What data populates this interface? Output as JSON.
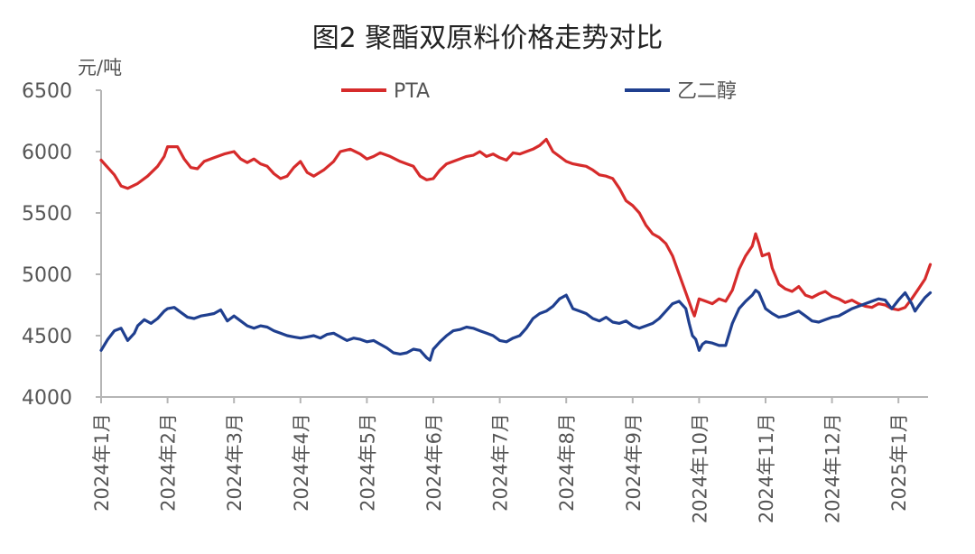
{
  "chart_data": {
    "type": "line",
    "title": "图2 聚酯双原料价格走势对比",
    "ylabel": "元/吨",
    "ylim": [
      4000,
      6500
    ],
    "yticks": [
      4000,
      4500,
      5000,
      5500,
      6000,
      6500
    ],
    "x_ticks": [
      "2024年1月",
      "2024年2月",
      "2024年3月",
      "2024年4月",
      "2024年5月",
      "2024年6月",
      "2024年7月",
      "2024年8月",
      "2024年9月",
      "2024年10月",
      "2024年11月",
      "2024年12月",
      "2025年1月"
    ],
    "x_range": [
      0,
      12.48
    ],
    "grid": false,
    "legend_position": "top",
    "series": [
      {
        "name": "PTA",
        "color": "#d62b2b",
        "points": [
          [
            0.0,
            5930
          ],
          [
            0.1,
            5870
          ],
          [
            0.2,
            5810
          ],
          [
            0.3,
            5720
          ],
          [
            0.4,
            5700
          ],
          [
            0.55,
            5740
          ],
          [
            0.7,
            5800
          ],
          [
            0.85,
            5880
          ],
          [
            0.95,
            5960
          ],
          [
            1.0,
            6040
          ],
          [
            1.15,
            6040
          ],
          [
            1.25,
            5940
          ],
          [
            1.35,
            5870
          ],
          [
            1.45,
            5860
          ],
          [
            1.55,
            5920
          ],
          [
            1.7,
            5950
          ],
          [
            1.85,
            5980
          ],
          [
            2.0,
            6000
          ],
          [
            2.1,
            5940
          ],
          [
            2.2,
            5910
          ],
          [
            2.3,
            5940
          ],
          [
            2.4,
            5900
          ],
          [
            2.5,
            5880
          ],
          [
            2.6,
            5820
          ],
          [
            2.7,
            5780
          ],
          [
            2.8,
            5800
          ],
          [
            2.9,
            5870
          ],
          [
            3.0,
            5920
          ],
          [
            3.1,
            5830
          ],
          [
            3.2,
            5800
          ],
          [
            3.35,
            5850
          ],
          [
            3.5,
            5920
          ],
          [
            3.6,
            6000
          ],
          [
            3.75,
            6020
          ],
          [
            3.9,
            5980
          ],
          [
            4.0,
            5940
          ],
          [
            4.1,
            5960
          ],
          [
            4.2,
            5990
          ],
          [
            4.35,
            5960
          ],
          [
            4.5,
            5920
          ],
          [
            4.6,
            5900
          ],
          [
            4.7,
            5880
          ],
          [
            4.8,
            5800
          ],
          [
            4.9,
            5770
          ],
          [
            5.0,
            5780
          ],
          [
            5.1,
            5850
          ],
          [
            5.2,
            5900
          ],
          [
            5.35,
            5930
          ],
          [
            5.5,
            5960
          ],
          [
            5.6,
            5970
          ],
          [
            5.7,
            6000
          ],
          [
            5.8,
            5960
          ],
          [
            5.9,
            5980
          ],
          [
            6.0,
            5950
          ],
          [
            6.1,
            5930
          ],
          [
            6.2,
            5990
          ],
          [
            6.3,
            5980
          ],
          [
            6.4,
            6000
          ],
          [
            6.5,
            6020
          ],
          [
            6.6,
            6050
          ],
          [
            6.7,
            6100
          ],
          [
            6.8,
            6000
          ],
          [
            6.9,
            5960
          ],
          [
            7.0,
            5920
          ],
          [
            7.1,
            5900
          ],
          [
            7.2,
            5890
          ],
          [
            7.3,
            5880
          ],
          [
            7.4,
            5850
          ],
          [
            7.5,
            5810
          ],
          [
            7.6,
            5800
          ],
          [
            7.7,
            5780
          ],
          [
            7.8,
            5700
          ],
          [
            7.9,
            5600
          ],
          [
            8.0,
            5560
          ],
          [
            8.1,
            5500
          ],
          [
            8.2,
            5400
          ],
          [
            8.3,
            5330
          ],
          [
            8.4,
            5300
          ],
          [
            8.5,
            5250
          ],
          [
            8.6,
            5150
          ],
          [
            8.7,
            5000
          ],
          [
            8.8,
            4850
          ],
          [
            8.9,
            4700
          ],
          [
            8.93,
            4660
          ],
          [
            9.0,
            4800
          ],
          [
            9.1,
            4780
          ],
          [
            9.2,
            4760
          ],
          [
            9.3,
            4800
          ],
          [
            9.4,
            4780
          ],
          [
            9.5,
            4870
          ],
          [
            9.6,
            5040
          ],
          [
            9.7,
            5150
          ],
          [
            9.8,
            5230
          ],
          [
            9.85,
            5330
          ],
          [
            9.9,
            5250
          ],
          [
            9.95,
            5150
          ],
          [
            10.05,
            5170
          ],
          [
            10.1,
            5050
          ],
          [
            10.2,
            4920
          ],
          [
            10.3,
            4880
          ],
          [
            10.4,
            4860
          ],
          [
            10.5,
            4900
          ],
          [
            10.6,
            4830
          ],
          [
            10.7,
            4810
          ],
          [
            10.8,
            4840
          ],
          [
            10.9,
            4860
          ],
          [
            11.0,
            4820
          ],
          [
            11.1,
            4800
          ],
          [
            11.2,
            4770
          ],
          [
            11.3,
            4790
          ],
          [
            11.4,
            4760
          ],
          [
            11.5,
            4740
          ],
          [
            11.6,
            4730
          ],
          [
            11.7,
            4760
          ],
          [
            11.8,
            4750
          ],
          [
            11.9,
            4720
          ],
          [
            12.0,
            4710
          ],
          [
            12.1,
            4730
          ],
          [
            12.2,
            4800
          ],
          [
            12.3,
            4880
          ],
          [
            12.4,
            4960
          ],
          [
            12.48,
            5080
          ]
        ]
      },
      {
        "name": "乙二醇",
        "color": "#1f3f8f",
        "points": [
          [
            0.0,
            4380
          ],
          [
            0.1,
            4470
          ],
          [
            0.2,
            4540
          ],
          [
            0.3,
            4560
          ],
          [
            0.4,
            4460
          ],
          [
            0.5,
            4520
          ],
          [
            0.55,
            4580
          ],
          [
            0.65,
            4630
          ],
          [
            0.75,
            4600
          ],
          [
            0.85,
            4640
          ],
          [
            0.95,
            4700
          ],
          [
            1.0,
            4720
          ],
          [
            1.1,
            4730
          ],
          [
            1.2,
            4690
          ],
          [
            1.3,
            4650
          ],
          [
            1.4,
            4640
          ],
          [
            1.5,
            4660
          ],
          [
            1.6,
            4670
          ],
          [
            1.7,
            4680
          ],
          [
            1.8,
            4710
          ],
          [
            1.9,
            4620
          ],
          [
            2.0,
            4660
          ],
          [
            2.1,
            4620
          ],
          [
            2.2,
            4580
          ],
          [
            2.3,
            4560
          ],
          [
            2.4,
            4580
          ],
          [
            2.5,
            4570
          ],
          [
            2.6,
            4540
          ],
          [
            2.7,
            4520
          ],
          [
            2.8,
            4500
          ],
          [
            2.9,
            4490
          ],
          [
            3.0,
            4480
          ],
          [
            3.1,
            4490
          ],
          [
            3.2,
            4500
          ],
          [
            3.3,
            4480
          ],
          [
            3.4,
            4510
          ],
          [
            3.5,
            4520
          ],
          [
            3.6,
            4490
          ],
          [
            3.7,
            4460
          ],
          [
            3.8,
            4480
          ],
          [
            3.9,
            4470
          ],
          [
            4.0,
            4450
          ],
          [
            4.1,
            4460
          ],
          [
            4.2,
            4430
          ],
          [
            4.3,
            4400
          ],
          [
            4.4,
            4360
          ],
          [
            4.5,
            4350
          ],
          [
            4.6,
            4360
          ],
          [
            4.7,
            4390
          ],
          [
            4.8,
            4380
          ],
          [
            4.9,
            4320
          ],
          [
            4.95,
            4300
          ],
          [
            5.0,
            4390
          ],
          [
            5.1,
            4450
          ],
          [
            5.2,
            4500
          ],
          [
            5.3,
            4540
          ],
          [
            5.4,
            4550
          ],
          [
            5.5,
            4570
          ],
          [
            5.6,
            4560
          ],
          [
            5.7,
            4540
          ],
          [
            5.8,
            4520
          ],
          [
            5.9,
            4500
          ],
          [
            6.0,
            4460
          ],
          [
            6.1,
            4450
          ],
          [
            6.2,
            4480
          ],
          [
            6.3,
            4500
          ],
          [
            6.4,
            4560
          ],
          [
            6.5,
            4640
          ],
          [
            6.6,
            4680
          ],
          [
            6.7,
            4700
          ],
          [
            6.8,
            4740
          ],
          [
            6.9,
            4800
          ],
          [
            7.0,
            4830
          ],
          [
            7.1,
            4720
          ],
          [
            7.2,
            4700
          ],
          [
            7.3,
            4680
          ],
          [
            7.4,
            4640
          ],
          [
            7.5,
            4620
          ],
          [
            7.6,
            4650
          ],
          [
            7.7,
            4610
          ],
          [
            7.8,
            4600
          ],
          [
            7.9,
            4620
          ],
          [
            8.0,
            4580
          ],
          [
            8.1,
            4560
          ],
          [
            8.2,
            4580
          ],
          [
            8.3,
            4600
          ],
          [
            8.4,
            4640
          ],
          [
            8.5,
            4700
          ],
          [
            8.6,
            4760
          ],
          [
            8.7,
            4780
          ],
          [
            8.8,
            4720
          ],
          [
            8.85,
            4600
          ],
          [
            8.9,
            4500
          ],
          [
            8.95,
            4470
          ],
          [
            9.0,
            4380
          ],
          [
            9.05,
            4430
          ],
          [
            9.1,
            4450
          ],
          [
            9.2,
            4440
          ],
          [
            9.3,
            4420
          ],
          [
            9.4,
            4420
          ],
          [
            9.5,
            4600
          ],
          [
            9.6,
            4720
          ],
          [
            9.7,
            4780
          ],
          [
            9.8,
            4830
          ],
          [
            9.85,
            4870
          ],
          [
            9.9,
            4850
          ],
          [
            10.0,
            4720
          ],
          [
            10.1,
            4680
          ],
          [
            10.2,
            4650
          ],
          [
            10.3,
            4660
          ],
          [
            10.4,
            4680
          ],
          [
            10.5,
            4700
          ],
          [
            10.6,
            4660
          ],
          [
            10.7,
            4620
          ],
          [
            10.8,
            4610
          ],
          [
            10.9,
            4630
          ],
          [
            11.0,
            4650
          ],
          [
            11.1,
            4660
          ],
          [
            11.2,
            4690
          ],
          [
            11.3,
            4720
          ],
          [
            11.4,
            4740
          ],
          [
            11.5,
            4760
          ],
          [
            11.6,
            4780
          ],
          [
            11.7,
            4800
          ],
          [
            11.8,
            4790
          ],
          [
            11.9,
            4720
          ],
          [
            12.0,
            4790
          ],
          [
            12.1,
            4850
          ],
          [
            12.2,
            4760
          ],
          [
            12.25,
            4700
          ],
          [
            12.3,
            4740
          ],
          [
            12.4,
            4810
          ],
          [
            12.48,
            4850
          ]
        ]
      }
    ]
  }
}
